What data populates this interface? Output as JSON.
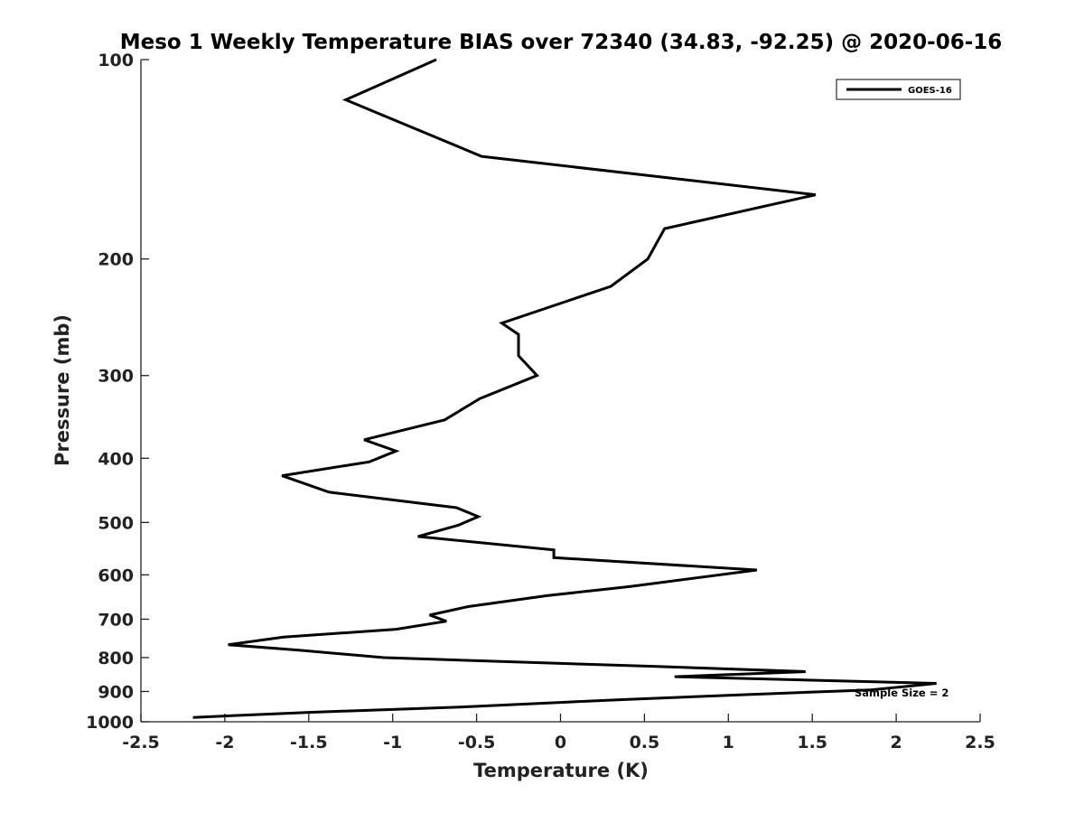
{
  "chart_data": {
    "type": "line",
    "title": "Meso 1 Weekly Temperature BIAS over 72340 (34.83, -92.25) @ 2020-06-16",
    "xlabel": "Temperature (K)",
    "ylabel": "Pressure (mb)",
    "xlim": [
      -2.5,
      2.5
    ],
    "ylim": [
      100,
      1000
    ],
    "y_scale": "log",
    "y_reversed": true,
    "x_ticks": [
      -2.5,
      -2,
      -1.5,
      -1,
      -0.5,
      0,
      0.5,
      1,
      1.5,
      2,
      2.5
    ],
    "x_tick_labels": [
      "-2.5",
      "-2",
      "-1.5",
      "-1",
      "-0.5",
      "0",
      "0.5",
      "1",
      "1.5",
      "2",
      "2.5"
    ],
    "y_ticks": [
      100,
      200,
      300,
      400,
      500,
      600,
      700,
      800,
      900,
      1000
    ],
    "y_tick_labels": [
      "100",
      "200",
      "300",
      "400",
      "500",
      "600",
      "700",
      "800",
      "900",
      "1000"
    ],
    "grid": false,
    "legend_position": "top-right",
    "annotation": "Sample Size = 2",
    "series": [
      {
        "name": "GOES-16",
        "color": "#000000",
        "points": [
          {
            "x": -0.74,
            "y": 100
          },
          {
            "x": -1.28,
            "y": 115
          },
          {
            "x": -0.47,
            "y": 140
          },
          {
            "x": 1.52,
            "y": 160
          },
          {
            "x": 0.62,
            "y": 180
          },
          {
            "x": 0.52,
            "y": 200
          },
          {
            "x": 0.3,
            "y": 220
          },
          {
            "x": -0.35,
            "y": 250
          },
          {
            "x": -0.25,
            "y": 260
          },
          {
            "x": -0.25,
            "y": 280
          },
          {
            "x": -0.14,
            "y": 300
          },
          {
            "x": -0.48,
            "y": 325
          },
          {
            "x": -0.69,
            "y": 350
          },
          {
            "x": -1.17,
            "y": 375
          },
          {
            "x": -0.98,
            "y": 390
          },
          {
            "x": -1.14,
            "y": 405
          },
          {
            "x": -1.66,
            "y": 425
          },
          {
            "x": -1.38,
            "y": 450
          },
          {
            "x": -0.62,
            "y": 475
          },
          {
            "x": -0.49,
            "y": 490
          },
          {
            "x": -0.61,
            "y": 505
          },
          {
            "x": -0.85,
            "y": 525
          },
          {
            "x": -0.04,
            "y": 550
          },
          {
            "x": -0.04,
            "y": 565
          },
          {
            "x": 1.17,
            "y": 590
          },
          {
            "x": 0.41,
            "y": 625
          },
          {
            "x": -0.08,
            "y": 645
          },
          {
            "x": -0.55,
            "y": 670
          },
          {
            "x": -0.78,
            "y": 690
          },
          {
            "x": -0.68,
            "y": 705
          },
          {
            "x": -0.98,
            "y": 725
          },
          {
            "x": -1.65,
            "y": 745
          },
          {
            "x": -1.98,
            "y": 765
          },
          {
            "x": -1.55,
            "y": 780
          },
          {
            "x": -1.05,
            "y": 800
          },
          {
            "x": 0.57,
            "y": 825
          },
          {
            "x": 1.46,
            "y": 840
          },
          {
            "x": 0.68,
            "y": 855
          },
          {
            "x": 2.24,
            "y": 875
          },
          {
            "x": 1.85,
            "y": 895
          },
          {
            "x": 1.1,
            "y": 910
          },
          {
            "x": 0.4,
            "y": 925
          },
          {
            "x": -0.6,
            "y": 950
          },
          {
            "x": -1.5,
            "y": 968
          },
          {
            "x": -2.19,
            "y": 985
          }
        ]
      }
    ]
  }
}
